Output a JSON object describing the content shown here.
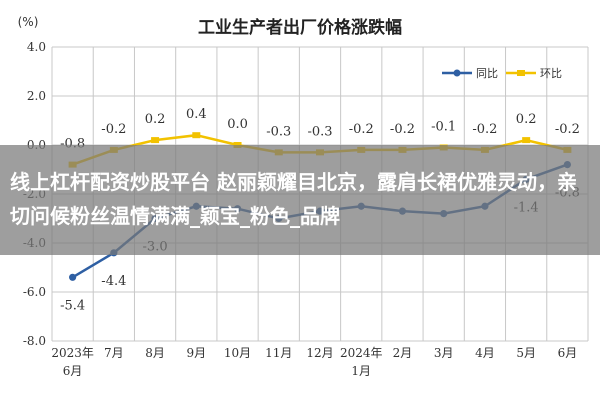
{
  "chart_data": {
    "type": "line",
    "title": "工业生产者出厂价格涨跌幅",
    "ylabel": "(%)",
    "ylim": [
      -8.0,
      4.0
    ],
    "y_ticks": [
      "4.0",
      "2.0",
      "0.0",
      "-2.0",
      "-4.0",
      "-6.0",
      "-8.0"
    ],
    "categories": [
      "2023年6月",
      "7月",
      "8月",
      "9月",
      "10月",
      "11月",
      "12月",
      "2024年1月",
      "2月",
      "3月",
      "4月",
      "5月",
      "6月"
    ],
    "x_tick_labels": [
      [
        "2023年",
        "6月"
      ],
      [
        "7月"
      ],
      [
        "8月"
      ],
      [
        "9月"
      ],
      [
        "10月"
      ],
      [
        "11月"
      ],
      [
        "12月"
      ],
      [
        "2024年",
        "1月"
      ],
      [
        "2月"
      ],
      [
        "3月"
      ],
      [
        "4月"
      ],
      [
        "5月"
      ],
      [
        "6月"
      ]
    ],
    "grid": true,
    "legend_position": "top-right",
    "series": [
      {
        "name": "同比",
        "color": "#2e5fa3",
        "values": [
          -5.4,
          -4.4,
          -3.0,
          -2.5,
          -2.6,
          -3.0,
          -2.7,
          -2.5,
          -2.7,
          -2.8,
          -2.5,
          -1.4,
          -0.8
        ],
        "labels": [
          "-5.4",
          "-4.4",
          "-3.0",
          "",
          "",
          "",
          "",
          "",
          "",
          "",
          "",
          "-1.4",
          "-0.8"
        ]
      },
      {
        "name": "环比",
        "color": "#f2c200",
        "values": [
          -0.8,
          -0.2,
          0.2,
          0.4,
          0.0,
          -0.3,
          -0.3,
          -0.2,
          -0.2,
          -0.1,
          -0.2,
          0.2,
          -0.2
        ],
        "labels": [
          "-0.8",
          "-0.2",
          "0.2",
          "0.4",
          "0.0",
          "-0.3",
          "-0.3",
          "-0.2",
          "-0.2",
          "-0.1",
          "-0.2",
          "0.2",
          "-0.2"
        ]
      }
    ]
  },
  "overlay": {
    "text": "线上杠杆配资炒股平台 赵丽颖耀目北京，露肩长裙优雅灵动，亲切问候粉丝温情满满_颖宝_粉色_品牌"
  }
}
